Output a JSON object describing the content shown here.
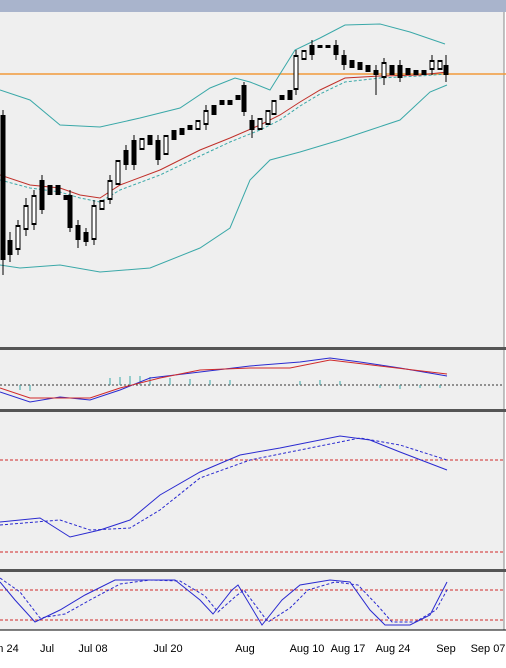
{
  "x_axis": {
    "labels": [
      "n 24",
      "Jul",
      "Jul 08",
      "Jul 20",
      "Aug",
      "Aug 10",
      "Aug 17",
      "Aug 24",
      "Sep",
      "Sep 07"
    ]
  }
}
